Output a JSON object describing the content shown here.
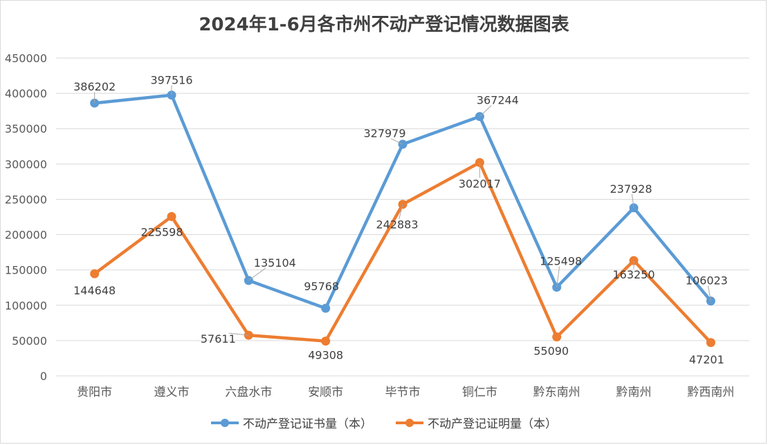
{
  "chart_data": {
    "type": "line",
    "title": "2024年1-6月各市州不动产登记情况数据图表",
    "categories": [
      "贵阳市",
      "遵义市",
      "六盘水市",
      "安顺市",
      "毕节市",
      "铜仁市",
      "黔东南州",
      "黔南州",
      "黔西南州"
    ],
    "y_ticks": [
      "0",
      "50000",
      "100000",
      "150000",
      "200000",
      "250000",
      "300000",
      "350000",
      "400000",
      "450000"
    ],
    "ylim": [
      0,
      450000
    ],
    "grid": true,
    "legend_position": "bottom",
    "series": [
      {
        "name": "不动产登记证书量（本）",
        "color": "#5B9BD5",
        "values": [
          386202,
          397516,
          135104,
          95768,
          327979,
          367244,
          125498,
          237928,
          106023
        ],
        "labels": [
          "386202",
          "397516",
          "135104",
          "95768",
          "327979",
          "367244",
          "125498",
          "237928",
          "106023"
        ]
      },
      {
        "name": "不动产登记证明量（本）",
        "color": "#ED7D31",
        "values": [
          144648,
          225598,
          57611,
          49308,
          242883,
          302017,
          55090,
          163250,
          47201
        ],
        "labels": [
          "144648",
          "225598",
          "57611",
          "49308",
          "242883",
          "302017",
          "55090",
          "163250",
          "47201"
        ]
      }
    ]
  }
}
